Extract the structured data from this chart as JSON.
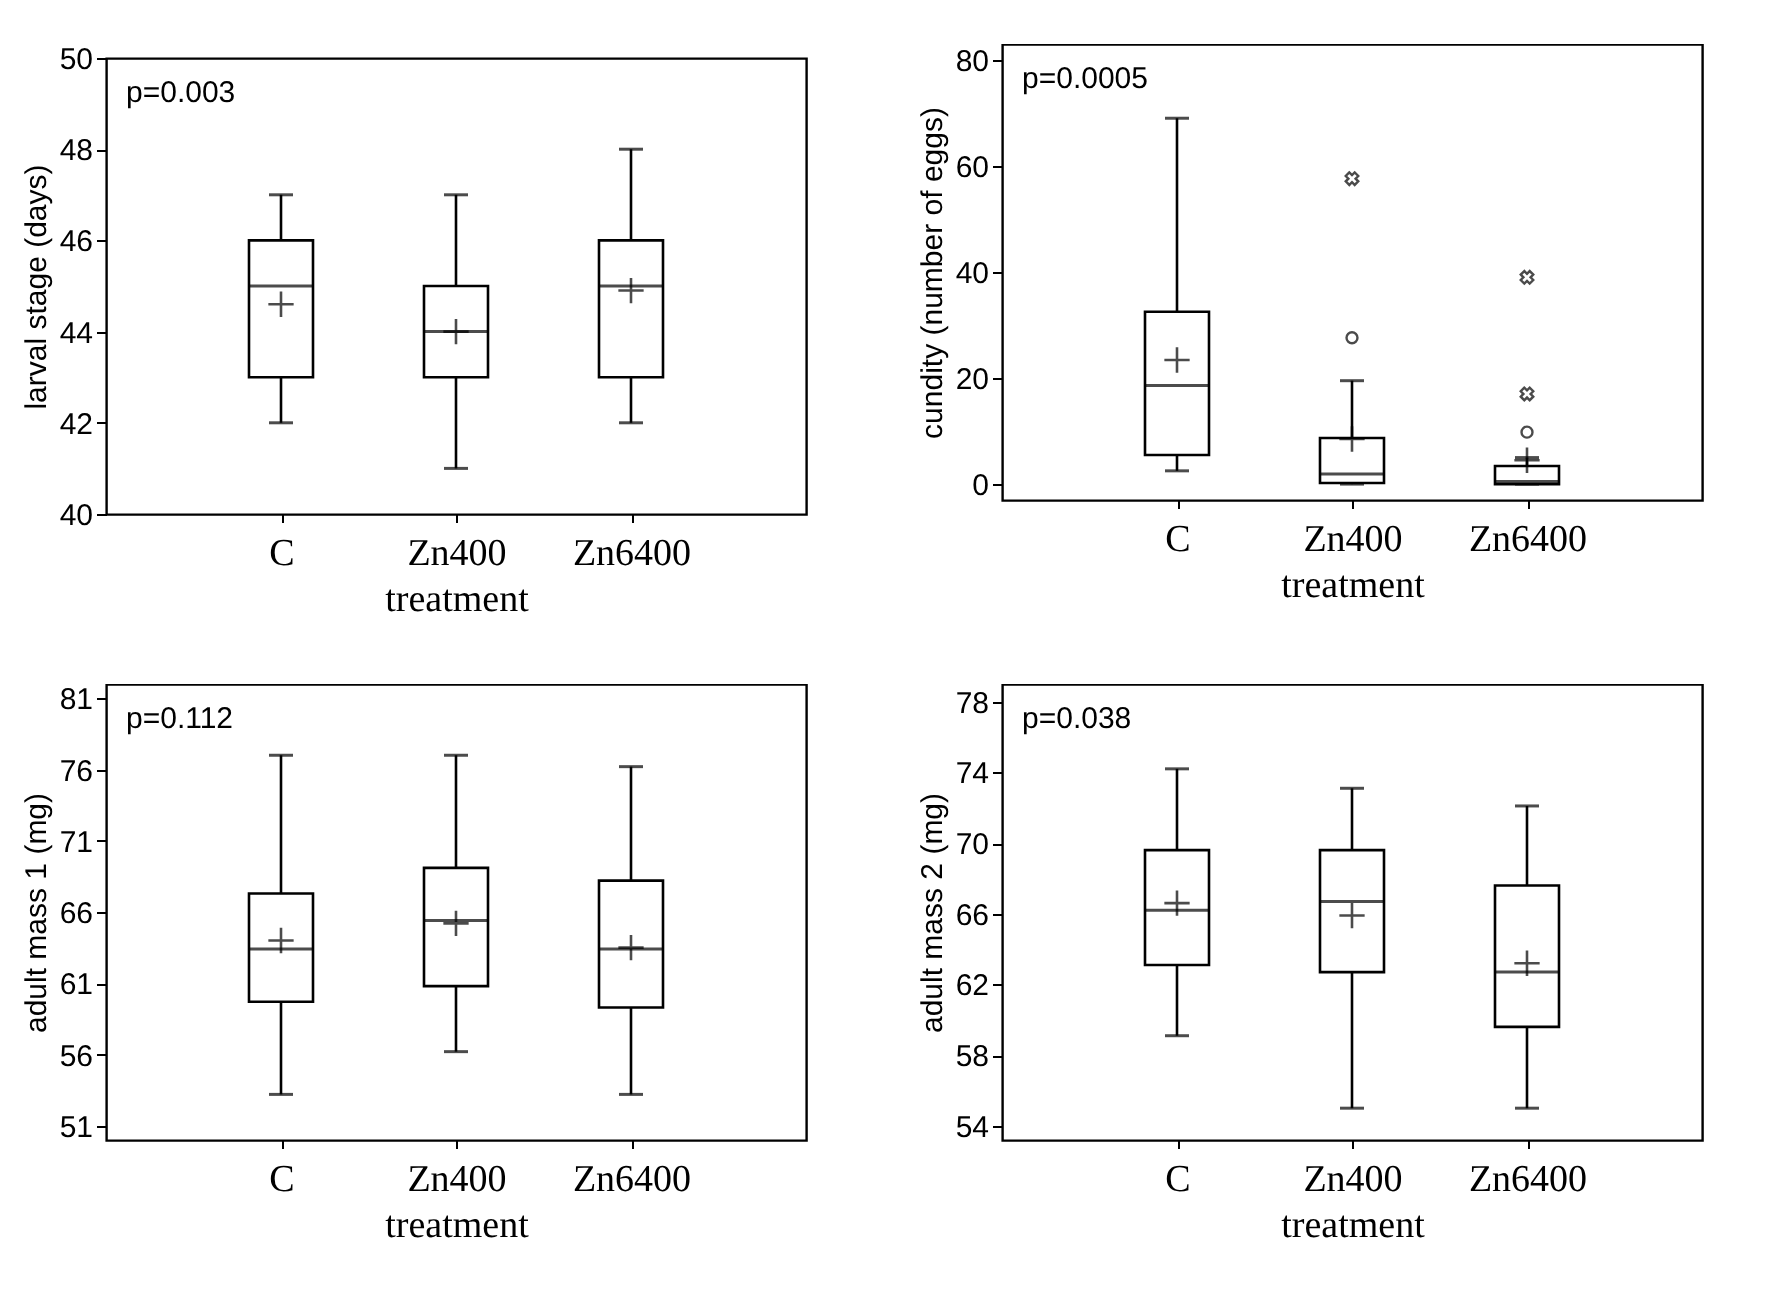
{
  "chart_data": [
    {
      "type": "box",
      "categories": [
        "C",
        "Zn400",
        "Zn6400"
      ],
      "xlabel": "treatment",
      "ylabel": "larval stage (days)",
      "ylim": [
        40,
        50
      ],
      "yticks": [
        40,
        42,
        44,
        46,
        48,
        50
      ],
      "annotations": [
        "p=0.003"
      ],
      "boxes": [
        {
          "low": 42,
          "q1": 43,
          "median": 45,
          "q3": 46,
          "high": 47,
          "mean": 44.6
        },
        {
          "low": 41,
          "q1": 43,
          "median": 44,
          "q3": 45,
          "high": 47,
          "mean": 44
        },
        {
          "low": 42,
          "q1": 43,
          "median": 45,
          "q3": 46,
          "high": 48,
          "mean": 44.9
        }
      ]
    },
    {
      "type": "box",
      "categories": [
        "C",
        "Zn400",
        "Zn6400"
      ],
      "xlabel": "treatment",
      "ylabel": "cundity (number of eggs)",
      "ylim": [
        -3,
        83
      ],
      "yticks": [
        0,
        20,
        40,
        60,
        80
      ],
      "annotations": [
        "p=0.0005"
      ],
      "boxes": [
        {
          "low": 2.5,
          "q1": 5.5,
          "median": 18.6,
          "q3": 32.5,
          "high": 69,
          "mean": 23.4
        },
        {
          "low": 0,
          "q1": 0.2,
          "median": 1.9,
          "q3": 8.7,
          "high": 19.5,
          "mean": 8.5,
          "outliers": [
            27.6,
            57.6
          ]
        },
        {
          "low": 0,
          "q1": 0,
          "median": 0.5,
          "q3": 3.4,
          "high": 5,
          "mean": 4.5,
          "outliers": [
            9.8,
            17,
            39
          ]
        }
      ]
    },
    {
      "type": "box",
      "categories": [
        "C",
        "Zn400",
        "Zn6400"
      ],
      "xlabel": "treatment",
      "ylabel": "adult mass 1 (mg)",
      "ylim": [
        50,
        82
      ],
      "yticks": [
        51,
        56,
        61,
        66,
        71,
        76,
        81
      ],
      "annotations": [
        "p=0.112"
      ],
      "boxes": [
        {
          "low": 53.2,
          "q1": 59.7,
          "median": 63.4,
          "q3": 67.3,
          "high": 77,
          "mean": 64
        },
        {
          "low": 56.2,
          "q1": 60.8,
          "median": 65.4,
          "q3": 69.1,
          "high": 77,
          "mean": 65.2
        },
        {
          "low": 53.2,
          "q1": 59.3,
          "median": 63.4,
          "q3": 68.2,
          "high": 76.2,
          "mean": 63.5
        }
      ]
    },
    {
      "type": "box",
      "categories": [
        "C",
        "Zn400",
        "Zn6400"
      ],
      "xlabel": "treatment",
      "ylabel": "adult mass 2 (mg)",
      "ylim": [
        53.2,
        79
      ],
      "yticks": [
        54,
        58,
        62,
        66,
        70,
        74,
        78
      ],
      "annotations": [
        "p=0.038"
      ],
      "boxes": [
        {
          "low": 59.1,
          "q1": 63.1,
          "median": 66.2,
          "q3": 69.6,
          "high": 74.2,
          "mean": 66.6
        },
        {
          "low": 55,
          "q1": 62.7,
          "median": 66.7,
          "q3": 69.6,
          "high": 73.1,
          "mean": 65.9
        },
        {
          "low": 55,
          "q1": 59.6,
          "median": 62.7,
          "q3": 67.6,
          "high": 72.1,
          "mean": 63.2
        }
      ]
    }
  ]
}
